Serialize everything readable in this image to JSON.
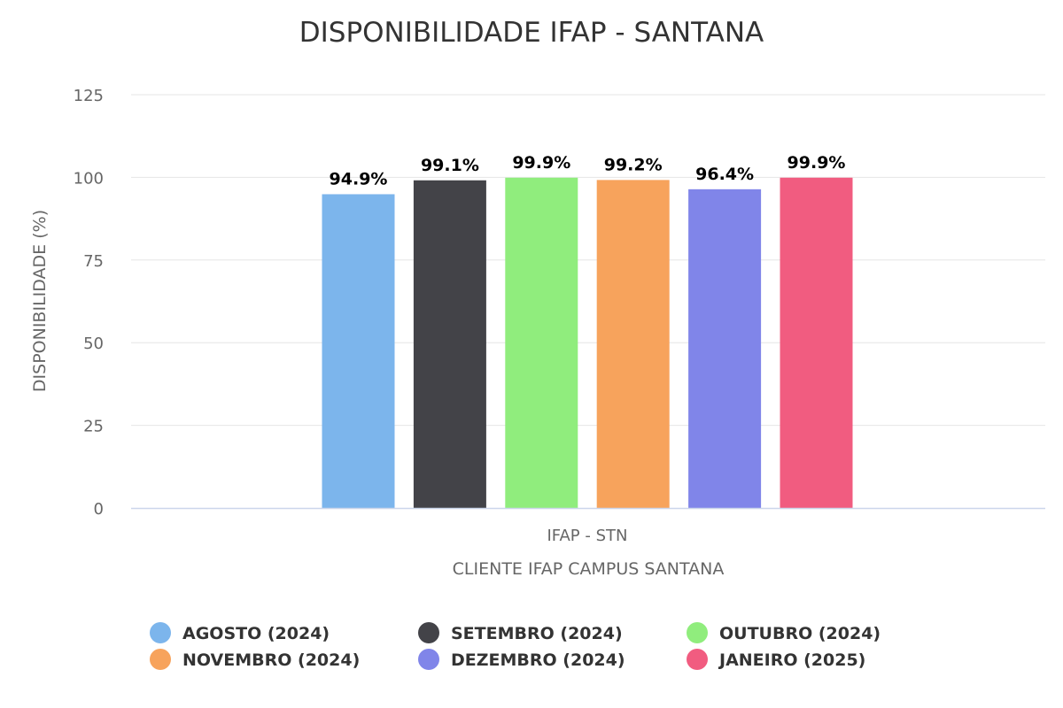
{
  "chart_data": {
    "type": "bar",
    "title": "DISPONIBILIDADE IFAP - SANTANA",
    "categories": [
      "IFAP - STN"
    ],
    "xlabel": "CLIENTE IFAP CAMPUS SANTANA",
    "ylabel": "DISPONIBILIDADE (%)",
    "ylim": [
      0,
      125
    ],
    "yticks": [
      0,
      25,
      50,
      75,
      100,
      125
    ],
    "grid": true,
    "legend_position": "bottom",
    "series": [
      {
        "name": "AGOSTO (2024)",
        "values": [
          94.9
        ],
        "label": "94.9%",
        "color": "#7cb5ec"
      },
      {
        "name": "SETEMBRO (2024)",
        "values": [
          99.1
        ],
        "label": "99.1%",
        "color": "#434348"
      },
      {
        "name": "OUTUBRO (2024)",
        "values": [
          99.9
        ],
        "label": "99.9%",
        "color": "#90ed7d"
      },
      {
        "name": "NOVEMBRO (2024)",
        "values": [
          99.2
        ],
        "label": "99.2%",
        "color": "#f7a35c"
      },
      {
        "name": "DEZEMBRO (2024)",
        "values": [
          96.4
        ],
        "label": "96.4%",
        "color": "#8085e9"
      },
      {
        "name": "JANEIRO (2025)",
        "values": [
          99.9
        ],
        "label": "99.9%",
        "color": "#f15c80"
      }
    ]
  }
}
